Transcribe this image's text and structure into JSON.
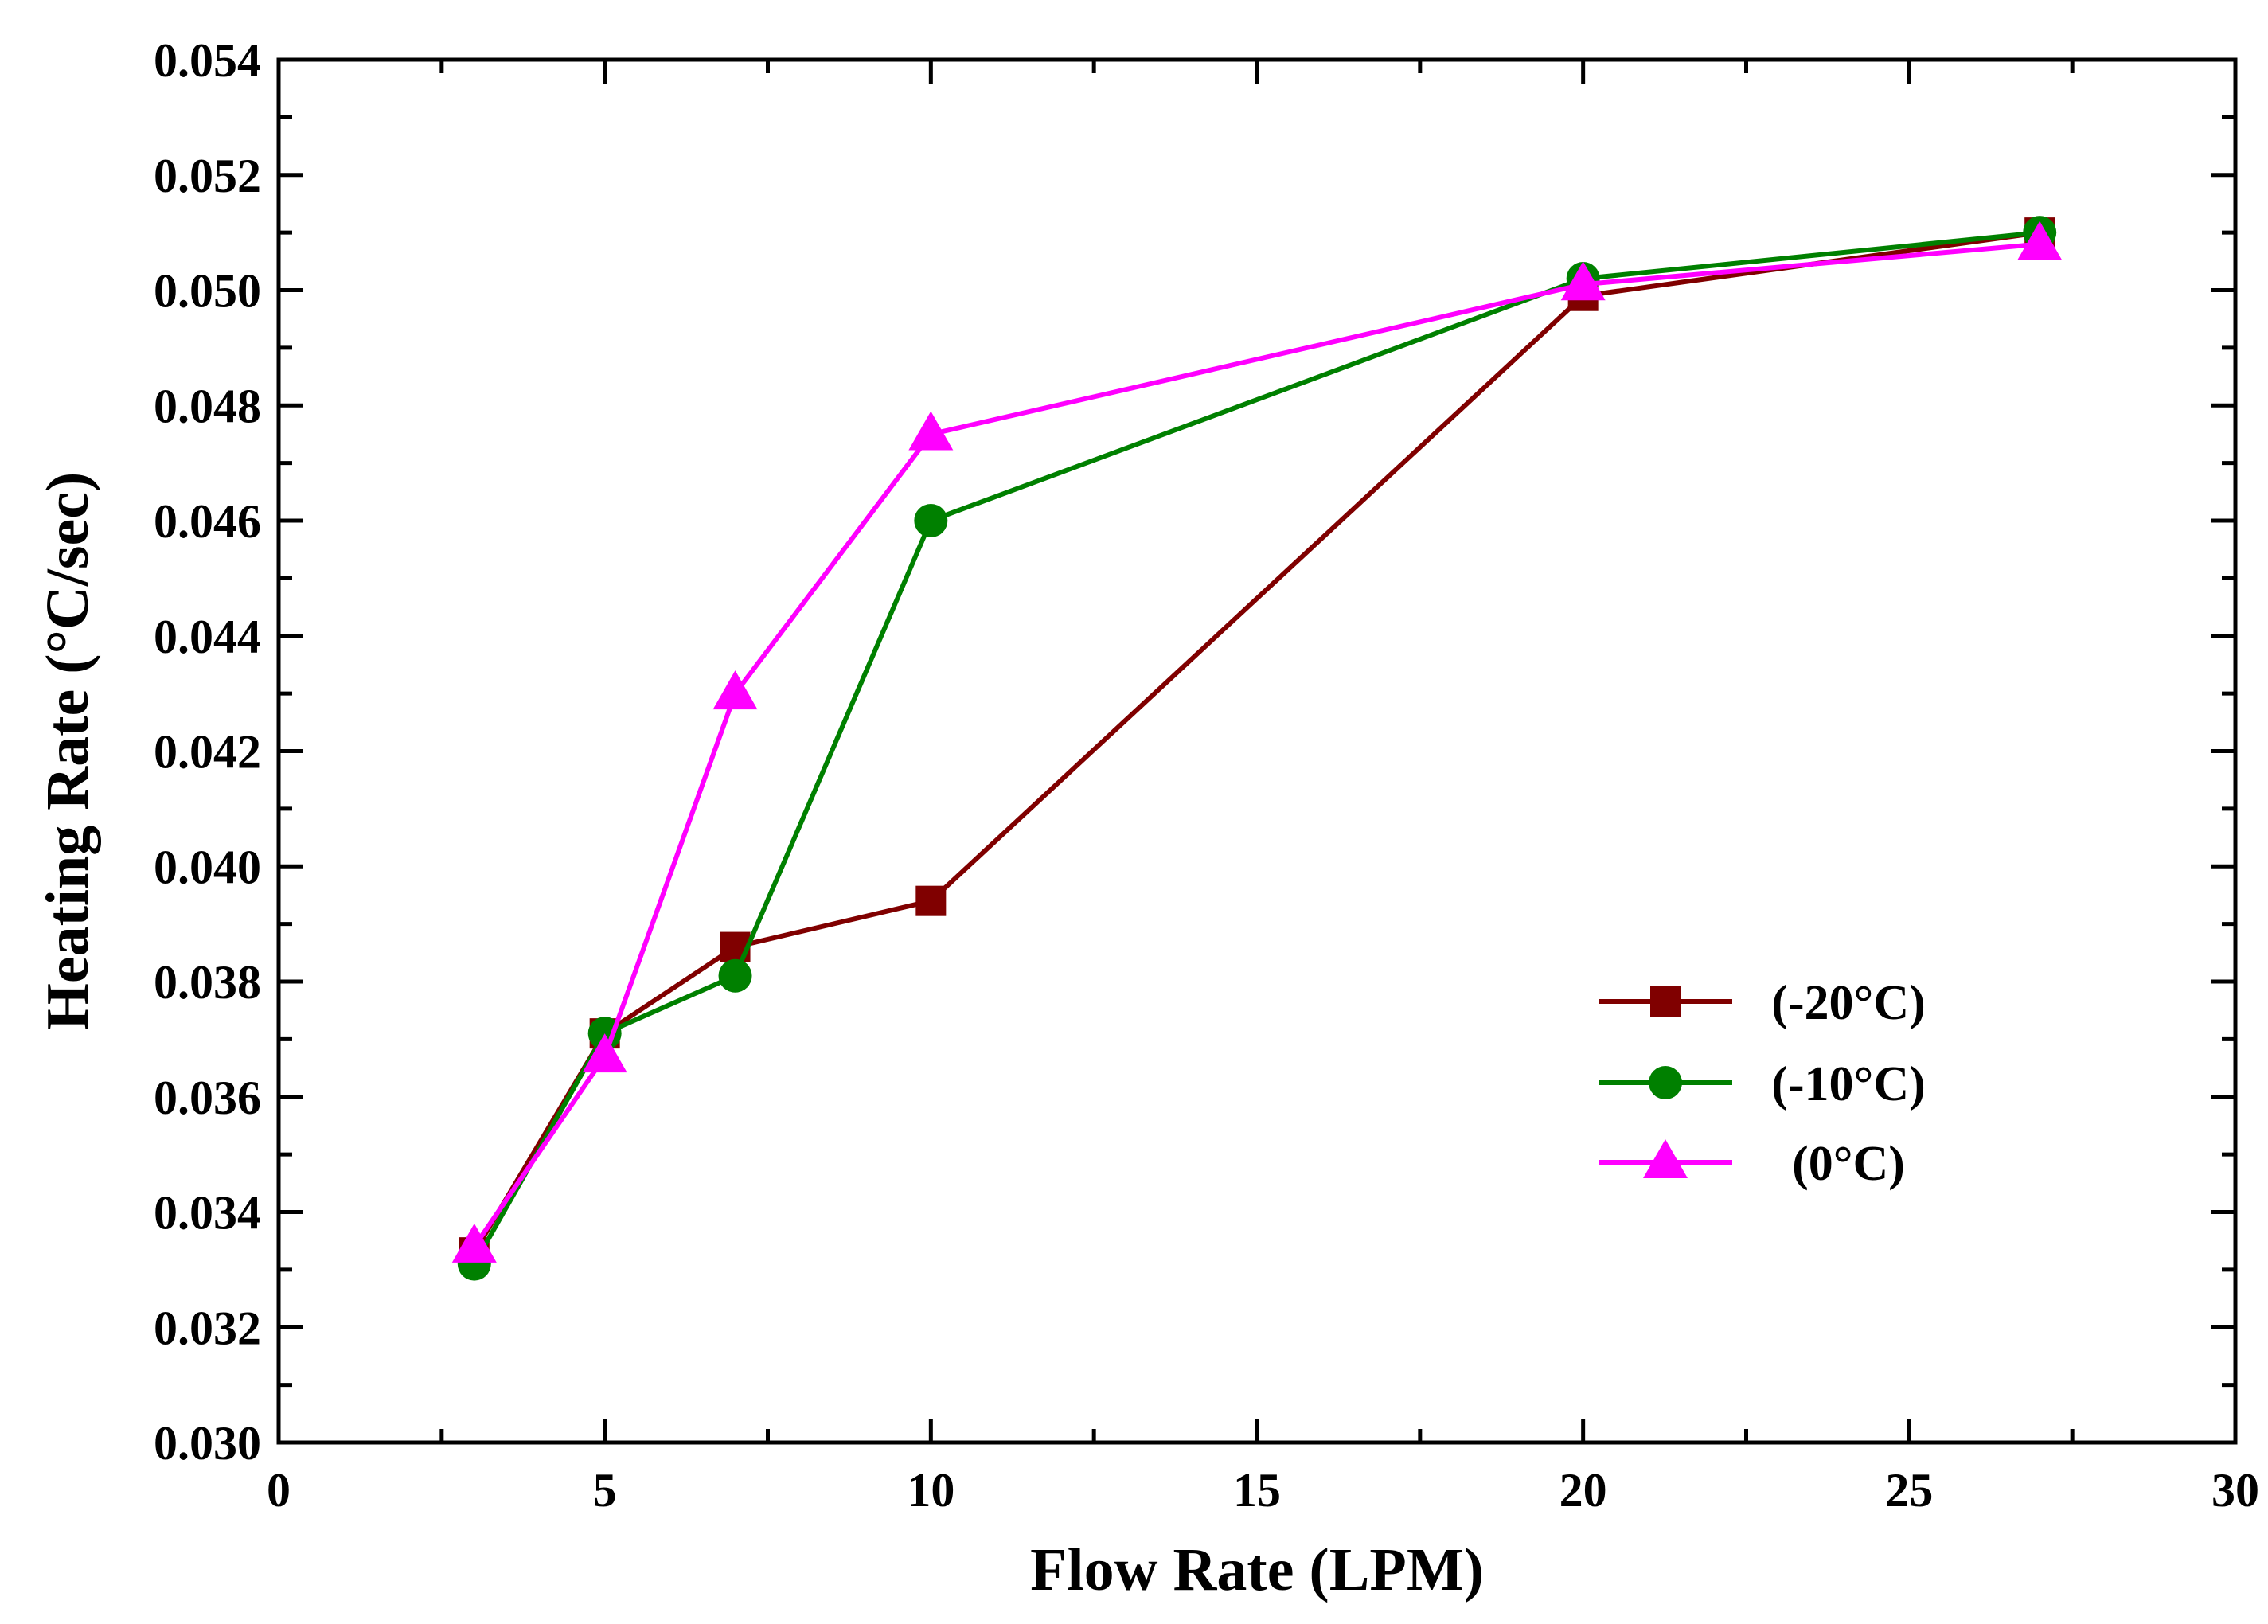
{
  "chart_data": {
    "type": "line",
    "title": "",
    "xlabel": "Flow Rate (LPM)",
    "ylabel": "Heating Rate (°C/sec)",
    "xlim": [
      0,
      30
    ],
    "ylim": [
      0.03,
      0.054
    ],
    "x_ticks": [
      0,
      5,
      10,
      15,
      20,
      25,
      30
    ],
    "x_tick_labels": [
      "0",
      "5",
      "10",
      "15",
      "20",
      "25",
      "30"
    ],
    "y_ticks": [
      0.03,
      0.032,
      0.034,
      0.036,
      0.038,
      0.04,
      0.042,
      0.044,
      0.046,
      0.048,
      0.05,
      0.052,
      0.054
    ],
    "y_tick_labels": [
      "0.030",
      "0.032",
      "0.034",
      "0.036",
      "0.038",
      "0.040",
      "0.042",
      "0.044",
      "0.046",
      "0.048",
      "0.050",
      "0.052",
      "0.054"
    ],
    "grid": false,
    "legend_position": "right",
    "x": [
      3,
      5,
      7,
      10,
      20,
      27
    ],
    "series": [
      {
        "name": "(-20°C)",
        "color": "#800000",
        "marker": "square",
        "values": [
          0.0333,
          0.0371,
          0.0386,
          0.0394,
          0.0499,
          0.051
        ]
      },
      {
        "name": "(-10°C)",
        "color": "#008000",
        "marker": "circle",
        "values": [
          0.0331,
          0.0371,
          0.0381,
          0.046,
          0.0502,
          0.051
        ]
      },
      {
        "name": "(0°C)",
        "color": "#ff00ff",
        "marker": "triangle",
        "values": [
          0.0334,
          0.0367,
          0.043,
          0.0475,
          0.0501,
          0.0508
        ]
      }
    ]
  }
}
